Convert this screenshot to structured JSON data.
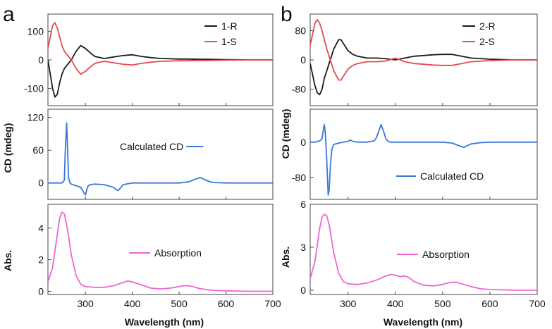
{
  "figure": {
    "panel_letters": [
      "a",
      "b"
    ],
    "shared_ylabel": "CD (mdeg)",
    "abs_ylabel": "Abs.",
    "xlabel": "Wavelength (nm)"
  },
  "colors": {
    "black": "#1a1a1a",
    "red": "#e8484f",
    "blue": "#3a78d6",
    "pink": "#f064d4",
    "frame": "#444444"
  },
  "chart_data": [
    {
      "type": "line",
      "panel": "a",
      "row": "top",
      "xlim": [
        220,
        700
      ],
      "ylim": [
        -160,
        160
      ],
      "yticks": [
        100,
        0,
        -100
      ],
      "ytick_labels": [
        "100",
        "0",
        "-100"
      ],
      "legend": [
        "1-R",
        "1-S"
      ],
      "series": [
        {
          "name": "1-R",
          "color": "black",
          "x": [
            220,
            225,
            230,
            235,
            240,
            245,
            250,
            255,
            260,
            270,
            280,
            290,
            300,
            310,
            320,
            340,
            360,
            380,
            400,
            420,
            440,
            460,
            480,
            500,
            520,
            540,
            560,
            600,
            650,
            700
          ],
          "y": [
            0,
            -50,
            -100,
            -130,
            -120,
            -80,
            -50,
            -30,
            -20,
            0,
            30,
            50,
            40,
            25,
            12,
            5,
            10,
            15,
            18,
            12,
            8,
            5,
            4,
            3,
            3,
            2,
            2,
            1,
            0,
            0
          ]
        },
        {
          "name": "1-S",
          "color": "red",
          "x": [
            220,
            225,
            230,
            235,
            240,
            245,
            250,
            255,
            260,
            270,
            280,
            290,
            300,
            310,
            320,
            340,
            360,
            380,
            400,
            420,
            440,
            460,
            480,
            500,
            520,
            540,
            560,
            600,
            650,
            700
          ],
          "y": [
            40,
            80,
            120,
            130,
            110,
            80,
            50,
            30,
            20,
            0,
            -30,
            -50,
            -40,
            -25,
            -12,
            -5,
            -10,
            -15,
            -18,
            -12,
            -8,
            -5,
            -4,
            -3,
            -3,
            -2,
            -2,
            -1,
            0,
            0
          ]
        }
      ]
    },
    {
      "type": "line",
      "panel": "a",
      "row": "middle",
      "xlim": [
        220,
        700
      ],
      "ylim": [
        -30,
        135
      ],
      "yticks": [
        120,
        60,
        0
      ],
      "ytick_labels": [
        "120",
        "60",
        "0"
      ],
      "legend": [
        "Calculated CD"
      ],
      "series": [
        {
          "name": "Calculated CD",
          "color": "blue",
          "x": [
            220,
            240,
            250,
            255,
            257,
            260,
            262,
            264,
            267,
            270,
            280,
            290,
            295,
            300,
            303,
            306,
            310,
            320,
            340,
            360,
            365,
            370,
            375,
            380,
            400,
            450,
            500,
            520,
            535,
            545,
            555,
            570,
            600,
            650,
            700
          ],
          "y": [
            0,
            0,
            0,
            5,
            60,
            110,
            60,
            10,
            0,
            -2,
            -5,
            -8,
            -15,
            -22,
            -12,
            -5,
            -3,
            -2,
            -3,
            -8,
            -12,
            -14,
            -9,
            -3,
            0,
            0,
            0,
            2,
            7,
            10,
            6,
            1,
            0,
            0,
            0
          ]
        }
      ]
    },
    {
      "type": "line",
      "panel": "a",
      "row": "bottom",
      "xlim": [
        220,
        700
      ],
      "ylim": [
        -0.2,
        5.5
      ],
      "yticks": [
        4,
        2,
        0
      ],
      "ytick_labels": [
        "4",
        "2",
        "0"
      ],
      "legend": [
        "Absorption"
      ],
      "series": [
        {
          "name": "Absorption",
          "color": "pink",
          "x": [
            220,
            230,
            240,
            245,
            250,
            255,
            260,
            265,
            270,
            280,
            290,
            300,
            320,
            340,
            360,
            380,
            390,
            400,
            420,
            440,
            460,
            480,
            500,
            510,
            520,
            530,
            540,
            560,
            580,
            600,
            650,
            700
          ],
          "y": [
            0.6,
            1.5,
            3.6,
            4.6,
            5.0,
            4.9,
            4.2,
            3.3,
            2.3,
            1.0,
            0.45,
            0.3,
            0.25,
            0.25,
            0.35,
            0.55,
            0.65,
            0.6,
            0.4,
            0.2,
            0.15,
            0.2,
            0.3,
            0.35,
            0.35,
            0.3,
            0.2,
            0.1,
            0.05,
            0.03,
            0,
            0
          ]
        }
      ]
    },
    {
      "type": "line",
      "panel": "b",
      "row": "top",
      "xlim": [
        220,
        700
      ],
      "ylim": [
        -125,
        125
      ],
      "yticks": [
        80,
        0,
        -80
      ],
      "ytick_labels": [
        "80",
        "0",
        "-80"
      ],
      "legend": [
        "2-R",
        "2-S"
      ],
      "series": [
        {
          "name": "2-R",
          "color": "black",
          "x": [
            220,
            225,
            230,
            235,
            240,
            245,
            250,
            255,
            260,
            270,
            280,
            285,
            290,
            300,
            310,
            320,
            340,
            360,
            380,
            400,
            420,
            440,
            460,
            480,
            500,
            520,
            540,
            560,
            600,
            650,
            700
          ],
          "y": [
            -10,
            -40,
            -70,
            -90,
            -95,
            -80,
            -50,
            -30,
            -10,
            30,
            55,
            55,
            45,
            25,
            15,
            10,
            5,
            5,
            3,
            0,
            5,
            10,
            12,
            14,
            15,
            15,
            10,
            5,
            2,
            0,
            0
          ]
        },
        {
          "name": "2-S",
          "color": "red",
          "x": [
            220,
            225,
            230,
            235,
            240,
            245,
            250,
            255,
            260,
            270,
            280,
            285,
            290,
            300,
            310,
            320,
            340,
            360,
            380,
            400,
            420,
            440,
            460,
            480,
            500,
            520,
            540,
            560,
            600,
            650,
            700
          ],
          "y": [
            40,
            70,
            100,
            110,
            100,
            80,
            55,
            30,
            10,
            -30,
            -55,
            -55,
            -45,
            -25,
            -15,
            -10,
            -5,
            -5,
            -3,
            5,
            -5,
            -10,
            -12,
            -14,
            -15,
            -15,
            -10,
            -5,
            -2,
            0,
            0
          ]
        }
      ]
    },
    {
      "type": "line",
      "panel": "b",
      "row": "middle",
      "xlim": [
        220,
        700
      ],
      "ylim": [
        -130,
        75
      ],
      "yticks": [
        0,
        -80
      ],
      "ytick_labels": [
        "0",
        "-80"
      ],
      "legend": [
        "Calculated CD"
      ],
      "series": [
        {
          "name": "Calculated CD",
          "color": "blue",
          "x": [
            220,
            230,
            240,
            245,
            248,
            250,
            252,
            255,
            258,
            260,
            263,
            266,
            270,
            280,
            290,
            300,
            305,
            310,
            320,
            340,
            355,
            360,
            365,
            370,
            375,
            380,
            385,
            390,
            400,
            450,
            500,
            520,
            530,
            540,
            545,
            550,
            560,
            580,
            600,
            650,
            700
          ],
          "y": [
            0,
            0,
            3,
            8,
            30,
            40,
            20,
            -40,
            -120,
            -110,
            -50,
            -15,
            -5,
            -2,
            0,
            2,
            5,
            2,
            0,
            0,
            3,
            10,
            25,
            40,
            25,
            8,
            2,
            0,
            0,
            0,
            0,
            -2,
            -6,
            -10,
            -12,
            -9,
            -4,
            -1,
            0,
            0,
            0
          ]
        }
      ]
    },
    {
      "type": "line",
      "panel": "b",
      "row": "bottom",
      "xlim": [
        220,
        700
      ],
      "ylim": [
        -0.3,
        6.0
      ],
      "yticks": [
        6,
        3,
        0
      ],
      "ytick_labels": [
        "6",
        "3",
        "0"
      ],
      "legend": [
        "Absorption"
      ],
      "series": [
        {
          "name": "Absorption",
          "color": "pink",
          "x": [
            220,
            230,
            240,
            245,
            250,
            255,
            260,
            265,
            270,
            280,
            290,
            300,
            320,
            340,
            360,
            380,
            390,
            400,
            410,
            420,
            430,
            440,
            460,
            480,
            500,
            510,
            520,
            530,
            540,
            560,
            580,
            600,
            650,
            700
          ],
          "y": [
            0.8,
            2.0,
            4.3,
            5.1,
            5.3,
            5.2,
            4.6,
            3.6,
            2.6,
            1.2,
            0.6,
            0.45,
            0.4,
            0.5,
            0.7,
            1.0,
            1.1,
            1.05,
            0.95,
            1.0,
            0.85,
            0.6,
            0.35,
            0.3,
            0.4,
            0.5,
            0.55,
            0.55,
            0.45,
            0.25,
            0.1,
            0.05,
            0,
            0
          ]
        }
      ]
    }
  ],
  "x_axis": {
    "ticks": [
      300,
      400,
      500,
      600,
      700
    ],
    "tick_labels": [
      "300",
      "400",
      "500",
      "600",
      "700"
    ]
  }
}
